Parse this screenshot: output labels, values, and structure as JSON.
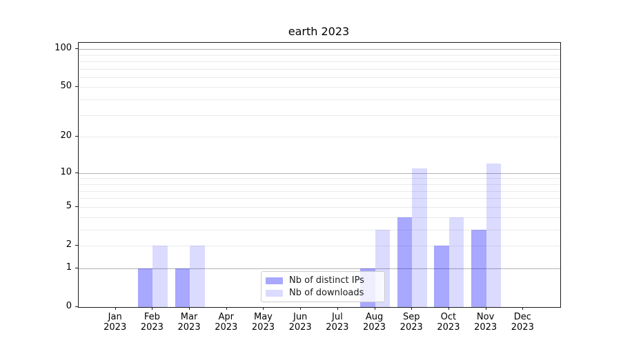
{
  "title": "earth 2023",
  "chart_data": {
    "type": "bar",
    "title": "earth 2023",
    "xlabel": "",
    "ylabel": "",
    "categories": [
      "Jan\n2023",
      "Feb\n2023",
      "Mar\n2023",
      "Apr\n2023",
      "May\n2023",
      "Jun\n2023",
      "Jul\n2023",
      "Aug\n2023",
      "Sep\n2023",
      "Oct\n2023",
      "Nov\n2023",
      "Dec\n2023"
    ],
    "series": [
      {
        "name": "Nb of distinct IPs",
        "fill": "rgba(0,0,255,0.34)",
        "color_hex": "#a8a8fb",
        "values": [
          0,
          1,
          1,
          0,
          0,
          0,
          0,
          1,
          4,
          2,
          3,
          0
        ]
      },
      {
        "name": "Nb of downloads",
        "fill": "rgba(0,0,255,0.14)",
        "color_hex": "#dbdbfb",
        "values": [
          0,
          2,
          2,
          0,
          0,
          0,
          0,
          3,
          11,
          4,
          12,
          0
        ]
      }
    ],
    "yscale": "log1p",
    "yticks": [
      0,
      1,
      2,
      5,
      10,
      20,
      50,
      100
    ],
    "minor_gridlines": [
      2,
      3,
      4,
      5,
      6,
      7,
      8,
      9,
      20,
      30,
      40,
      50,
      60,
      70,
      80,
      90
    ],
    "major_gridlines": [
      1,
      10,
      100
    ],
    "ylim": [
      0,
      112
    ],
    "grid": "horizontal",
    "legend_position": "lower center"
  },
  "legend": {
    "items": [
      "Nb of distinct IPs",
      "Nb of downloads"
    ]
  }
}
